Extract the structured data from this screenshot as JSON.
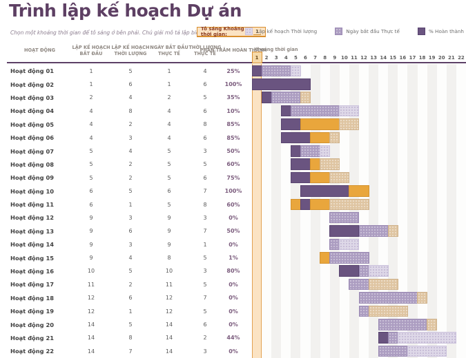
{
  "title": "Trình lập kế hoạch Dự án",
  "subtitle": "Chọn một khoảng thời gian để tô sáng ở bên phải.  Chú giải mô tả lập biểu đồ theo sau.",
  "highlight_control": {
    "label": "Tô sáng Khoảng thời gian:",
    "value": "1"
  },
  "legend": [
    {
      "id": "plan",
      "label": "Lập kế hoạch Thời lượng"
    },
    {
      "id": "actual",
      "label": "Ngày bắt đầu Thực tế"
    },
    {
      "id": "complete",
      "label": "% Hoàn thành"
    }
  ],
  "table": {
    "columns": [
      "Hoạt động",
      "Lập kế hoạch bắt đầu",
      "Lập kế hoạch thời lượng",
      "Ngày bắt đầu thực tế",
      "Thời lượng thực tế",
      "Phần trăm hoàn thành"
    ]
  },
  "timeline": {
    "label": "Khoảng thời gian",
    "start": 1,
    "end": 22,
    "highlighted_period": 1
  },
  "chart_data": {
    "type": "gantt",
    "title": "Trình lập kế hoạch Dự án",
    "x_axis": {
      "label": "Khoảng thời gian",
      "min": 1,
      "max": 22,
      "highlighted_period": 1
    },
    "legend_position": "top-right",
    "rows": [
      {
        "activity": "Hoạt động 01",
        "plan_start": 1,
        "plan_dur": 5,
        "actual_start": 1,
        "actual_dur": 4,
        "pct_complete": "25%"
      },
      {
        "activity": "Hoạt động 02",
        "plan_start": 1,
        "plan_dur": 6,
        "actual_start": 1,
        "actual_dur": 6,
        "pct_complete": "100%"
      },
      {
        "activity": "Hoạt động 03",
        "plan_start": 2,
        "plan_dur": 4,
        "actual_start": 2,
        "actual_dur": 5,
        "pct_complete": "35%"
      },
      {
        "activity": "Hoạt động 04",
        "plan_start": 4,
        "plan_dur": 8,
        "actual_start": 4,
        "actual_dur": 6,
        "pct_complete": "10%"
      },
      {
        "activity": "Hoạt động 05",
        "plan_start": 4,
        "plan_dur": 2,
        "actual_start": 4,
        "actual_dur": 8,
        "pct_complete": "85%"
      },
      {
        "activity": "Hoạt động 06",
        "plan_start": 4,
        "plan_dur": 3,
        "actual_start": 4,
        "actual_dur": 6,
        "pct_complete": "85%"
      },
      {
        "activity": "Hoạt động 07",
        "plan_start": 5,
        "plan_dur": 4,
        "actual_start": 5,
        "actual_dur": 3,
        "pct_complete": "50%"
      },
      {
        "activity": "Hoạt động 08",
        "plan_start": 5,
        "plan_dur": 2,
        "actual_start": 5,
        "actual_dur": 5,
        "pct_complete": "60%"
      },
      {
        "activity": "Hoạt động 09",
        "plan_start": 5,
        "plan_dur": 2,
        "actual_start": 5,
        "actual_dur": 6,
        "pct_complete": "75%"
      },
      {
        "activity": "Hoạt động 10",
        "plan_start": 6,
        "plan_dur": 5,
        "actual_start": 6,
        "actual_dur": 7,
        "pct_complete": "100%"
      },
      {
        "activity": "Hoạt động 11",
        "plan_start": 6,
        "plan_dur": 1,
        "actual_start": 5,
        "actual_dur": 8,
        "pct_complete": "60%"
      },
      {
        "activity": "Hoạt động 12",
        "plan_start": 9,
        "plan_dur": 3,
        "actual_start": 9,
        "actual_dur": 3,
        "pct_complete": "0%"
      },
      {
        "activity": "Hoạt động 13",
        "plan_start": 9,
        "plan_dur": 6,
        "actual_start": 9,
        "actual_dur": 7,
        "pct_complete": "50%"
      },
      {
        "activity": "Hoạt động 14",
        "plan_start": 9,
        "plan_dur": 3,
        "actual_start": 9,
        "actual_dur": 1,
        "pct_complete": "0%"
      },
      {
        "activity": "Hoạt động 15",
        "plan_start": 9,
        "plan_dur": 4,
        "actual_start": 8,
        "actual_dur": 5,
        "pct_complete": "1%"
      },
      {
        "activity": "Hoạt động 16",
        "plan_start": 10,
        "plan_dur": 5,
        "actual_start": 10,
        "actual_dur": 3,
        "pct_complete": "80%"
      },
      {
        "activity": "Hoạt động 17",
        "plan_start": 11,
        "plan_dur": 2,
        "actual_start": 11,
        "actual_dur": 5,
        "pct_complete": "0%"
      },
      {
        "activity": "Hoạt động 18",
        "plan_start": 12,
        "plan_dur": 6,
        "actual_start": 12,
        "actual_dur": 7,
        "pct_complete": "0%"
      },
      {
        "activity": "Hoạt động 19",
        "plan_start": 12,
        "plan_dur": 1,
        "actual_start": 12,
        "actual_dur": 5,
        "pct_complete": "0%"
      },
      {
        "activity": "Hoạt động 20",
        "plan_start": 14,
        "plan_dur": 5,
        "actual_start": 14,
        "actual_dur": 6,
        "pct_complete": "0%"
      },
      {
        "activity": "Hoạt động 21",
        "plan_start": 14,
        "plan_dur": 8,
        "actual_start": 14,
        "actual_dur": 2,
        "pct_complete": "44%"
      },
      {
        "activity": "Hoạt động 22",
        "plan_start": 14,
        "plan_dur": 7,
        "actual_start": 14,
        "actual_dur": 3,
        "pct_complete": "0%"
      }
    ]
  },
  "colors": {
    "title": "#5D3F63",
    "plan": "#DED8E8",
    "actual": "#AC9DC1",
    "complete": "#6A5480",
    "actual_beyond_plan": "#DFC5A2",
    "complete_beyond_plan": "#E9A63C",
    "highlight_fill": "#FBE3C3",
    "highlight_border": "#E2A150",
    "column_stripe": "#F2F1EF",
    "divider": "#5C4066"
  }
}
